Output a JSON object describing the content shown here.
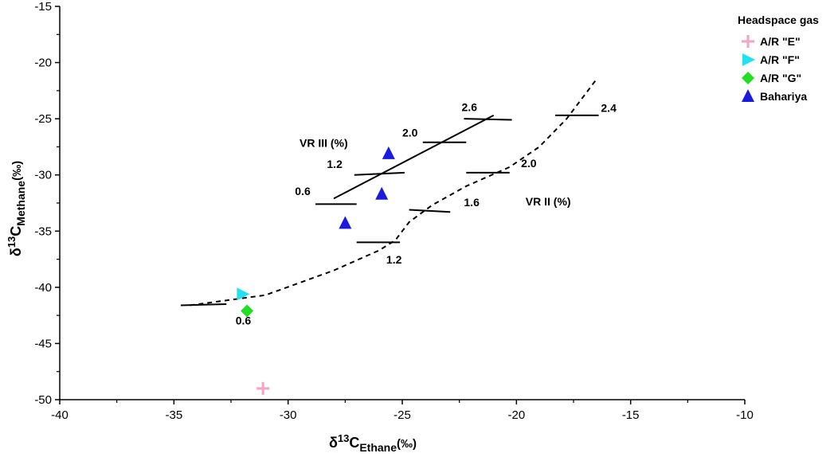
{
  "chart_data": {
    "type": "scatter",
    "title": "",
    "xlabel_symbol": "δ",
    "xlabel_sup": "13",
    "xlabel_main": "C",
    "xlabel_sub": "Ethane",
    "xlabel_unit": "(‰)",
    "ylabel_symbol": "δ",
    "ylabel_sup": "13",
    "ylabel_main": "C",
    "ylabel_sub": "Methane",
    "ylabel_unit": "(‰)",
    "xlim": [
      -40,
      -10
    ],
    "ylim": [
      -50,
      -15
    ],
    "x_ticks": [
      -40,
      -35,
      -30,
      -25,
      -20,
      -15,
      -10
    ],
    "x_tick_labels": [
      "-40",
      "-35",
      "-30",
      "-25",
      "-20",
      "-15",
      "-10"
    ],
    "y_ticks": [
      -50,
      -45,
      -40,
      -35,
      -30,
      -25,
      -20,
      -15
    ],
    "y_tick_labels": [
      "-50",
      "-45",
      "-40",
      "-35",
      "-30",
      "-25",
      "-20",
      "-15"
    ],
    "grid": false,
    "legend": {
      "title": "Headspace gas",
      "placement": "top-right",
      "entries": [
        {
          "label": "A/R \"E\"",
          "marker": "plus",
          "color": "#f4a6c8"
        },
        {
          "label": "A/R \"F\"",
          "marker": "triangle-right",
          "color": "#22e0f0"
        },
        {
          "label": "A/R \"G\"",
          "marker": "diamond",
          "color": "#22dd22"
        },
        {
          "label": "Bahariya",
          "marker": "triangle-up",
          "color": "#1a1ae0"
        }
      ]
    },
    "series": [
      {
        "name": "A/R \"E\"",
        "marker": "plus",
        "color": "#f4a6c8",
        "points": [
          {
            "x": -31.1,
            "y": -49.0
          }
        ]
      },
      {
        "name": "A/R \"F\"",
        "marker": "triangle-right",
        "color": "#22e0f0",
        "points": [
          {
            "x": -32.0,
            "y": -40.6
          }
        ]
      },
      {
        "name": "A/R \"G\"",
        "marker": "diamond",
        "color": "#22dd22",
        "points": [
          {
            "x": -31.8,
            "y": -42.1
          }
        ]
      },
      {
        "name": "Bahariya",
        "marker": "triangle-up",
        "color": "#1a1ae0",
        "points": [
          {
            "x": -27.5,
            "y": -34.3
          },
          {
            "x": -25.9,
            "y": -31.7
          },
          {
            "x": -25.6,
            "y": -28.1
          }
        ]
      }
    ],
    "trend_lines": [
      {
        "label": "VR III (%)",
        "style": "solid",
        "line": [
          [
            -28.0,
            -32.1
          ],
          [
            -21.0,
            -24.7
          ]
        ],
        "ticks": [
          {
            "label": "0.6",
            "seg": [
              [
                -28.8,
                -32.6
              ],
              [
                -27.0,
                -32.6
              ]
            ]
          },
          {
            "label": "1.2",
            "seg": [
              [
                -27.1,
                -30.0
              ],
              [
                -24.9,
                -29.8
              ]
            ]
          },
          {
            "label": "2.0",
            "seg": [
              [
                -24.1,
                -27.1
              ],
              [
                -22.2,
                -27.1
              ]
            ]
          },
          {
            "label": "2.6",
            "seg": [
              [
                -22.3,
                -25.0
              ],
              [
                -20.2,
                -25.1
              ]
            ]
          }
        ]
      },
      {
        "label": "VR II (%)",
        "style": "dashed",
        "line": [
          [
            -34.3,
            -41.6
          ],
          [
            -31.0,
            -40.7
          ],
          [
            -28.0,
            -38.5
          ],
          [
            -26.0,
            -36.7
          ],
          [
            -25.3,
            -35.8
          ],
          [
            -24.7,
            -34.2
          ],
          [
            -23.7,
            -32.7
          ],
          [
            -22.2,
            -31.0
          ],
          [
            -20.3,
            -29.3
          ],
          [
            -19.0,
            -27.5
          ],
          [
            -17.8,
            -25.0
          ],
          [
            -16.5,
            -21.5
          ]
        ],
        "ticks": [
          {
            "label": "0.6",
            "seg": [
              [
                -34.7,
                -41.6
              ],
              [
                -32.7,
                -41.5
              ]
            ]
          },
          {
            "label": "1.2",
            "seg": [
              [
                -27.0,
                -36.0
              ],
              [
                -25.1,
                -36.0
              ]
            ]
          },
          {
            "label": "1.6",
            "seg": [
              [
                -24.7,
                -33.1
              ],
              [
                -22.9,
                -33.3
              ]
            ]
          },
          {
            "label": "2.0",
            "seg": [
              [
                -22.2,
                -29.8
              ],
              [
                -20.3,
                -29.8
              ]
            ]
          },
          {
            "label": "2.4",
            "seg": [
              [
                -18.3,
                -24.7
              ],
              [
                -16.4,
                -24.7
              ]
            ]
          }
        ]
      }
    ],
    "annotations": [
      {
        "id": "vr3-title",
        "text": "VR III (%)",
        "x": -29.5,
        "y": -27.5
      },
      {
        "id": "vr2-title",
        "text": "VR II (%)",
        "x": -19.6,
        "y": -32.7
      },
      {
        "id": "vr3-0.6",
        "text": "0.6",
        "x": -29.7,
        "y": -31.8
      },
      {
        "id": "vr3-1.2",
        "text": "1.2",
        "x": -28.3,
        "y": -29.4
      },
      {
        "id": "vr3-2.0",
        "text": "2.0",
        "x": -25.0,
        "y": -26.6
      },
      {
        "id": "vr3-2.6",
        "text": "2.6",
        "x": -22.4,
        "y": -24.3
      },
      {
        "id": "vr2-0.6",
        "text": "0.6",
        "x": -32.3,
        "y": -43.3
      },
      {
        "id": "vr2-1.2",
        "text": "1.2",
        "x": -25.7,
        "y": -37.9
      },
      {
        "id": "vr2-1.6",
        "text": "1.6",
        "x": -22.3,
        "y": -32.8
      },
      {
        "id": "vr2-2.0",
        "text": "2.0",
        "x": -19.8,
        "y": -29.3
      },
      {
        "id": "vr2-2.4",
        "text": "2.4",
        "x": -16.3,
        "y": -24.4
      }
    ]
  }
}
